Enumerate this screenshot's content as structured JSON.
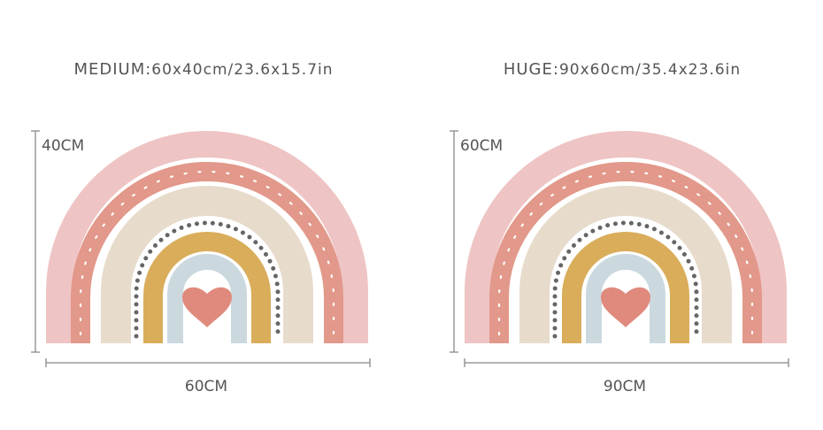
{
  "panels": [
    {
      "size_name": "MEDIUM:",
      "dimensions": "60x40cm/23.6x15.7in",
      "height_label": "40CM",
      "width_label": "60CM"
    },
    {
      "size_name": "HUGE:",
      "dimensions": "90x60cm/35.4x23.6in",
      "height_label": "60CM",
      "width_label": "90CM"
    }
  ]
}
